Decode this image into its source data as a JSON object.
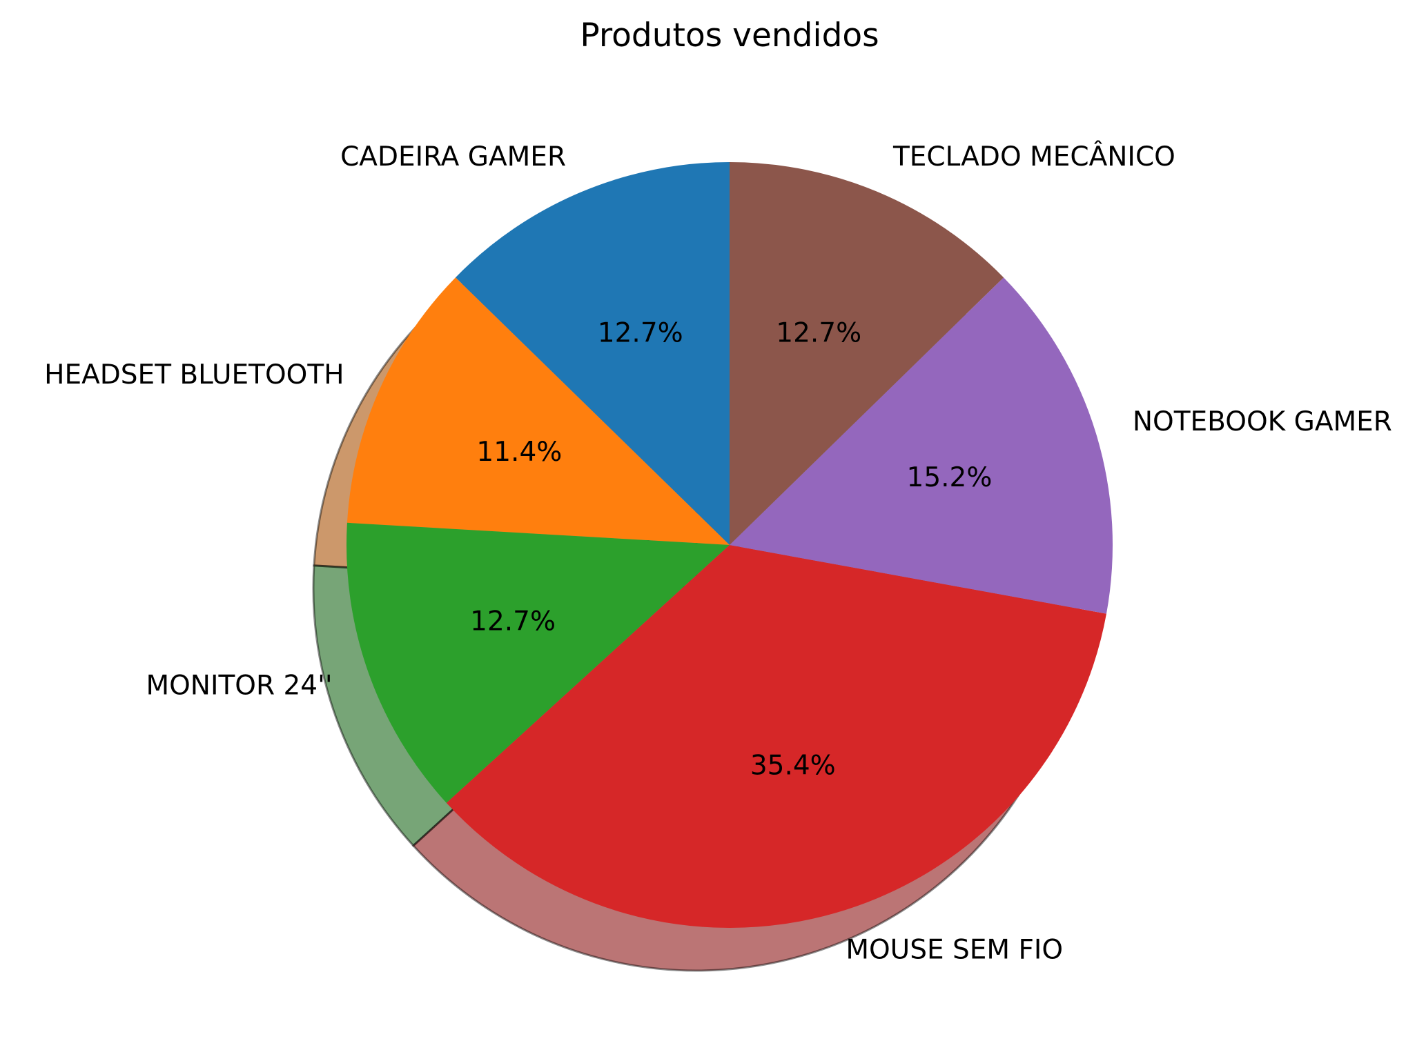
{
  "chart_data": {
    "type": "pie",
    "title": "Produtos vendidos",
    "categories": [
      "CADEIRA GAMER",
      "HEADSET BLUETOOTH",
      "MONITOR 24''",
      "MOUSE SEM FIO",
      "NOTEBOOK GAMER",
      "TECLADO MECÂNICO"
    ],
    "values": [
      12.7,
      11.4,
      12.7,
      35.4,
      15.2,
      12.7
    ],
    "value_labels": [
      "12.7%",
      "11.4%",
      "12.7%",
      "35.4%",
      "15.2%",
      "12.7%"
    ],
    "colors": [
      "#1f77b4",
      "#ff7f0e",
      "#2ca02c",
      "#d62728",
      "#9467bd",
      "#8c564b"
    ],
    "start_angle_deg": 90,
    "direction": "counterclockwise",
    "shadow": true
  }
}
